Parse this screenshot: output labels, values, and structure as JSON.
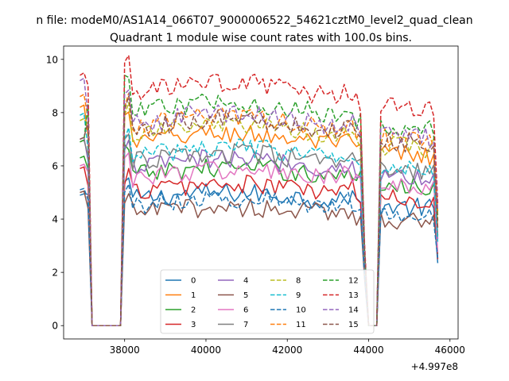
{
  "figure": {
    "suptitle": "n file: modeM0/AS1A14_066T07_9000006522_54621cztM0_level2_quad_clean"
  },
  "chart_data": {
    "type": "line",
    "title": "Quadrant 1 module wise count rates with 100.0s bins.",
    "xlabel": "",
    "ylabel": "",
    "x_offset_label": "+4.997e8",
    "xlim": [
      36500,
      46200
    ],
    "ylim": [
      -0.5,
      10.5
    ],
    "xticks": [
      38000,
      40000,
      42000,
      44000,
      46000
    ],
    "xtick_labels": [
      "38000",
      "40000",
      "42000",
      "44000",
      "46000"
    ],
    "yticks": [
      0,
      2,
      4,
      6,
      8,
      10
    ],
    "ytick_labels": [
      "0",
      "2",
      "4",
      "6",
      "8",
      "10"
    ],
    "grid": false,
    "legend": {
      "placement": "lower center",
      "columns": 4
    },
    "segments": {
      "x_start": 36900,
      "x_end": 45750,
      "step": 100,
      "gap1": [
        37200,
        37900
      ],
      "gap2": [
        44000,
        44150
      ]
    },
    "series": [
      {
        "name": "0",
        "color": "#1f77b4",
        "dash": "solid",
        "level": 4.7,
        "start": 4.9,
        "peak": 5.4
      },
      {
        "name": "1",
        "color": "#ff7f0e",
        "dash": "solid",
        "level": 6.8,
        "start": 8.2,
        "peak": 7.9
      },
      {
        "name": "2",
        "color": "#2ca02c",
        "dash": "solid",
        "level": 5.6,
        "start": 6.3,
        "peak": 6.8
      },
      {
        "name": "3",
        "color": "#d62728",
        "dash": "solid",
        "level": 5.0,
        "start": 5.9,
        "peak": 5.3
      },
      {
        "name": "4",
        "color": "#9467bd",
        "dash": "solid",
        "level": 5.9,
        "start": 7.0,
        "peak": 6.6
      },
      {
        "name": "5",
        "color": "#8c564b",
        "dash": "solid",
        "level": 4.2,
        "start": 5.0,
        "peak": 4.6
      },
      {
        "name": "6",
        "color": "#e377c2",
        "dash": "solid",
        "level": 5.5,
        "start": 6.0,
        "peak": 6.3
      },
      {
        "name": "7",
        "color": "#7f7f7f",
        "dash": "solid",
        "level": 6.1,
        "start": 6.9,
        "peak": 7.0
      },
      {
        "name": "8",
        "color": "#bcbd22",
        "dash": "dashed",
        "level": 7.1,
        "start": 7.7,
        "peak": 7.9
      },
      {
        "name": "9",
        "color": "#17becf",
        "dash": "dashed",
        "level": 6.3,
        "start": 7.9,
        "peak": 7.0
      },
      {
        "name": "10",
        "color": "#1f77b4",
        "dash": "dashed",
        "level": 4.5,
        "start": 5.1,
        "peak": 5.0
      },
      {
        "name": "11",
        "color": "#ff7f0e",
        "dash": "dashed",
        "level": 7.4,
        "start": 8.6,
        "peak": 8.2
      },
      {
        "name": "12",
        "color": "#2ca02c",
        "dash": "dashed",
        "level": 7.9,
        "start": 6.9,
        "peak": 9.4
      },
      {
        "name": "13",
        "color": "#d62728",
        "dash": "dashed",
        "level": 8.6,
        "start": 9.4,
        "peak": 9.9
      },
      {
        "name": "14",
        "color": "#9467bd",
        "dash": "dashed",
        "level": 7.5,
        "start": 9.2,
        "peak": 8.7
      },
      {
        "name": "15",
        "color": "#8c564b",
        "dash": "dashed",
        "level": 7.3,
        "start": 7.0,
        "peak": 8.1
      }
    ]
  }
}
